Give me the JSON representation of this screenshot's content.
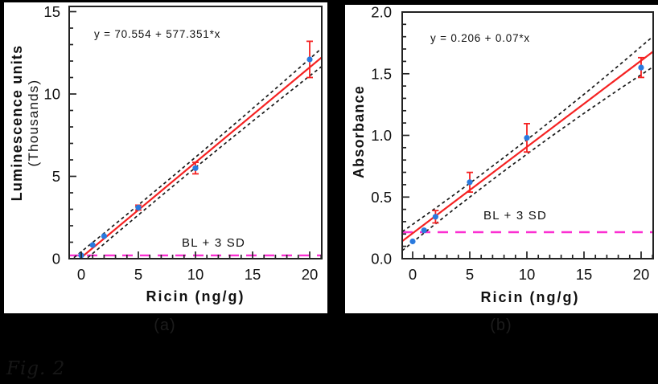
{
  "colors": {
    "background": "#000000",
    "panel": "#ffffff",
    "fit_line": "#f52222",
    "data_point": "#2a7ade",
    "error_bar": "#f52222",
    "threshold": "#fb2fd1",
    "confidence_band": "#1a1a1a",
    "axis": "#222222",
    "text": "#111111",
    "caption": "#1c1c1c"
  },
  "captions": {
    "a": "(a)",
    "b": "(b)"
  },
  "footer_note": "Fig. 2",
  "chart_data": [
    {
      "id": "a",
      "type": "scatter",
      "equation": "y = 70.554 + 577.351*x",
      "xlabel": "Ricin  (ng/g)",
      "ylabel_lines": [
        "Luminescence units",
        "(Thousands)"
      ],
      "y_units": "luminescence units (thousands)",
      "x": [
        0,
        1,
        2,
        5,
        10,
        20
      ],
      "y": [
        0.2,
        0.83,
        1.37,
        3.1,
        5.5,
        12.1
      ],
      "yerr": [
        0,
        0,
        0,
        0.15,
        0.35,
        1.1
      ],
      "fit": {
        "intercept": 0.070554,
        "slope": 0.577351
      },
      "confidence_band_offset": {
        "base": 0.3,
        "quad": 0.0012,
        "center": 6.5
      },
      "threshold": {
        "label": "BL + 3 SD",
        "y": 0.2
      },
      "xtick_values": [
        0,
        5,
        10,
        15,
        20
      ],
      "xticks": [
        "0",
        "5",
        "10",
        "15",
        "20"
      ],
      "ytick_values": [
        0,
        5,
        10,
        15
      ],
      "yticks": [
        "0",
        "5",
        "10",
        "15"
      ],
      "x_minor_step": 1,
      "y_minor_step": 1,
      "xlim": [
        -1.06,
        21.06
      ],
      "ylim": [
        0,
        15.32
      ],
      "grid": false
    },
    {
      "id": "b",
      "type": "scatter",
      "equation": "y = 0.206 + 0.07*x",
      "xlabel": "Ricin  (ng/g)",
      "ylabel_lines": [
        "Absorbance"
      ],
      "y_units": "absorbance",
      "x": [
        0,
        1,
        2,
        5,
        10,
        20
      ],
      "y": [
        0.14,
        0.23,
        0.34,
        0.62,
        0.98,
        1.55
      ],
      "yerr": [
        0,
        0,
        0.05,
        0.08,
        0.115,
        0.08
      ],
      "fit": {
        "intercept": 0.206,
        "slope": 0.07
      },
      "confidence_band_offset": {
        "base": 0.055,
        "quad": 0.00035,
        "center": 7
      },
      "threshold": {
        "label": "BL + 3 SD",
        "y": 0.215
      },
      "xtick_values": [
        0,
        5,
        10,
        15,
        20
      ],
      "xticks": [
        "0",
        "5",
        "10",
        "15",
        "20"
      ],
      "ytick_values": [
        0,
        0.5,
        1.0,
        1.5,
        2.0
      ],
      "yticks": [
        "0.0",
        "0.5",
        "1.0",
        "1.5",
        "2.0"
      ],
      "x_minor_step": 1,
      "y_minor_step": 0.1,
      "xlim": [
        -0.92,
        21.06
      ],
      "ylim": [
        0,
        2.0
      ],
      "grid": false
    }
  ]
}
